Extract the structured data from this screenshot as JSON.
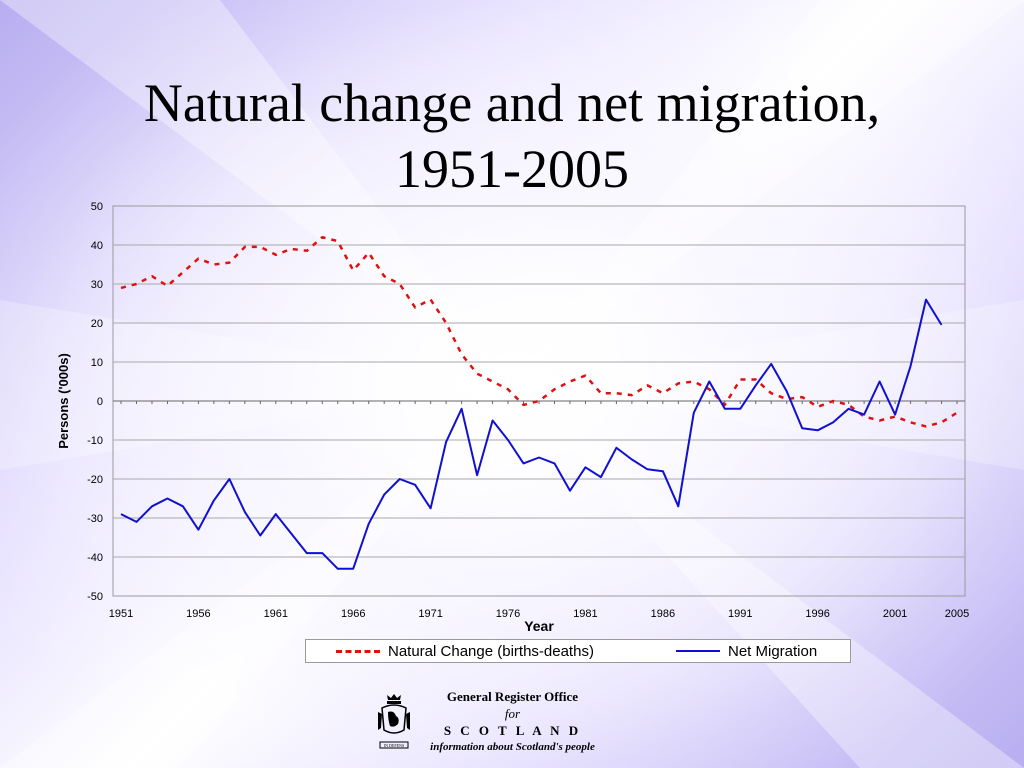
{
  "slide": {
    "title_line1": "Natural change and net migration,",
    "title_line2": "1951-2005"
  },
  "footer": {
    "org_line1": "General Register Office",
    "org_line2": "for",
    "org_line3": "S C O T L A N D",
    "org_line4": "information about Scotland's people",
    "crest_motto": "IN DEFENS"
  },
  "chart_data": {
    "type": "line",
    "xlabel": "Year",
    "ylabel": "Persons ('000s)",
    "x": [
      1951,
      1952,
      1953,
      1954,
      1955,
      1956,
      1957,
      1958,
      1959,
      1960,
      1961,
      1962,
      1963,
      1964,
      1965,
      1966,
      1967,
      1968,
      1969,
      1970,
      1971,
      1972,
      1973,
      1974,
      1975,
      1976,
      1977,
      1978,
      1979,
      1980,
      1981,
      1982,
      1983,
      1984,
      1985,
      1986,
      1987,
      1988,
      1989,
      1990,
      1991,
      1992,
      1993,
      1994,
      1995,
      1996,
      1997,
      1998,
      1999,
      2000,
      2001,
      2002,
      2003,
      2004,
      2005
    ],
    "x_ticks": [
      1951,
      1956,
      1961,
      1966,
      1971,
      1976,
      1981,
      1986,
      1991,
      1996,
      2001,
      2005
    ],
    "y_ticks": [
      50,
      40,
      30,
      20,
      10,
      0,
      -10,
      -20,
      -30,
      -40,
      -50
    ],
    "ylim": [
      -50,
      50
    ],
    "grid": true,
    "legend_position": "bottom",
    "series": [
      {
        "name": "Natural Change (births-deaths)",
        "style": "dashed",
        "color": "#e01010",
        "values": [
          29,
          30,
          32,
          29.5,
          33,
          36.5,
          35,
          35.5,
          39.5,
          39.5,
          37.5,
          39,
          38.5,
          42,
          41,
          33.5,
          38,
          32,
          30,
          24,
          26,
          20,
          12,
          7,
          5,
          3,
          -1,
          0,
          3,
          5,
          6.5,
          2,
          2,
          1.5,
          4,
          2,
          4.5,
          5,
          3,
          -1,
          5.5,
          5.5,
          2,
          0.5,
          1,
          -1.5,
          0,
          -1,
          -4,
          -5,
          -4,
          -5.5,
          -6.5,
          -5.5,
          -3
        ]
      },
      {
        "name": "Net Migration",
        "style": "solid",
        "color": "#1010d0",
        "values": [
          -29,
          -31,
          -27,
          -25,
          -27,
          -33,
          -25.5,
          -20,
          -28.5,
          -34.5,
          -29,
          -34,
          -39,
          -39,
          -43,
          -43,
          -31.5,
          -24,
          -20,
          -21.5,
          -27.5,
          -10.5,
          -2,
          -19,
          -5,
          -10,
          -16,
          -14.5,
          -16,
          -23,
          -17,
          -19.5,
          -12,
          -15,
          -17.5,
          -18,
          -27,
          -3,
          5,
          -2,
          -2,
          4,
          9.5,
          2.5,
          -7,
          -7.5,
          -5.5,
          -2,
          -3.5,
          5,
          -3.5,
          9,
          26,
          19.5,
          null
        ]
      }
    ]
  }
}
